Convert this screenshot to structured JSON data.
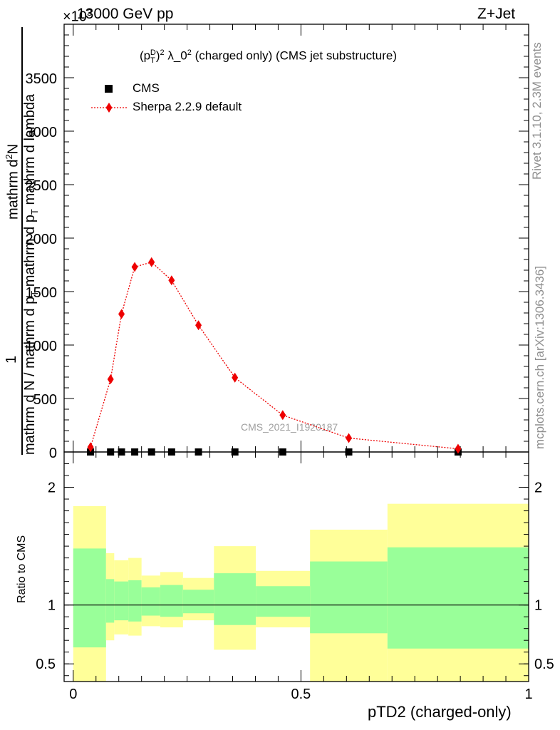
{
  "header": {
    "left": "13000 GeV pp",
    "right": "Z+Jet",
    "exponent": "×10",
    "exponent_power": "3"
  },
  "side_labels": {
    "rivet": "Rivet 3.1.10,  2.3M events",
    "mcplots": "mcplots.cern.ch [arXiv:1306.3436]"
  },
  "watermark": "CMS_2021_I1920187",
  "chart_data": [
    {
      "type": "line",
      "title": "(p_T^D)^2 λ_0^2 (charged only) (CMS jet substructure)",
      "ylabel": "1 / mathrm d N / mathrm d p_T mathrm d lambda · mathrm d^2N / mathrm d p_T mathrm d lambda",
      "xlim": [
        -0.02,
        1.0
      ],
      "ylim": [
        0,
        4000
      ],
      "y_exponent": 3,
      "yticks": [
        0,
        500,
        1000,
        1500,
        2000,
        2500,
        3000,
        3500
      ],
      "ytick_labels": [
        "0",
        "500",
        "1000",
        "1500",
        "2000",
        "2500",
        "3000",
        "3500"
      ],
      "legend_position": "top-left",
      "series": [
        {
          "name": "CMS",
          "marker": "square",
          "color": "#000000",
          "x": [
            0.038,
            0.082,
            0.106,
            0.135,
            0.172,
            0.216,
            0.275,
            0.355,
            0.46,
            0.605,
            0.845
          ],
          "y": [
            0,
            0,
            0,
            0,
            0,
            0,
            0,
            0,
            0,
            0,
            0
          ]
        },
        {
          "name": "Sherpa 2.2.9 default",
          "marker": "diamond",
          "color": "#ee0000",
          "x": [
            0.038,
            0.082,
            0.106,
            0.135,
            0.172,
            0.216,
            0.275,
            0.355,
            0.46,
            0.605,
            0.845
          ],
          "y": [
            45,
            680,
            1290,
            1730,
            1775,
            1605,
            1185,
            695,
            345,
            130,
            30
          ]
        }
      ]
    },
    {
      "type": "area",
      "ylabel": "Ratio to CMS",
      "xlabel": "pTD2 (charged-only)",
      "xlim": [
        -0.02,
        1.0
      ],
      "ylim": [
        0.35,
        2.3
      ],
      "yticks": [
        0.5,
        1,
        2
      ],
      "ytick_labels": [
        "0.5",
        "1",
        "2"
      ],
      "xticks": [
        0,
        0.5,
        1
      ],
      "xtick_labels": [
        "0",
        "0.5",
        "1"
      ],
      "reference_line": 1,
      "bins": [
        {
          "lo": 0.0,
          "hi": 0.072,
          "green_lo": 0.64,
          "green_hi": 1.48,
          "yellow_lo": 0.35,
          "yellow_hi": 1.84
        },
        {
          "lo": 0.072,
          "hi": 0.09,
          "green_lo": 0.85,
          "green_hi": 1.22,
          "yellow_lo": 0.7,
          "yellow_hi": 1.44
        },
        {
          "lo": 0.09,
          "hi": 0.121,
          "green_lo": 0.87,
          "green_hi": 1.2,
          "yellow_lo": 0.75,
          "yellow_hi": 1.38
        },
        {
          "lo": 0.121,
          "hi": 0.15,
          "green_lo": 0.86,
          "green_hi": 1.21,
          "yellow_lo": 0.74,
          "yellow_hi": 1.4
        },
        {
          "lo": 0.15,
          "hi": 0.191,
          "green_lo": 0.91,
          "green_hi": 1.15,
          "yellow_lo": 0.82,
          "yellow_hi": 1.25
        },
        {
          "lo": 0.191,
          "hi": 0.241,
          "green_lo": 0.9,
          "green_hi": 1.17,
          "yellow_lo": 0.81,
          "yellow_hi": 1.28
        },
        {
          "lo": 0.241,
          "hi": 0.309,
          "green_lo": 0.93,
          "green_hi": 1.13,
          "yellow_lo": 0.87,
          "yellow_hi": 1.23
        },
        {
          "lo": 0.309,
          "hi": 0.401,
          "green_lo": 0.83,
          "green_hi": 1.27,
          "yellow_lo": 0.62,
          "yellow_hi": 1.5
        },
        {
          "lo": 0.401,
          "hi": 0.52,
          "green_lo": 0.9,
          "green_hi": 1.16,
          "yellow_lo": 0.81,
          "yellow_hi": 1.29
        },
        {
          "lo": 0.52,
          "hi": 0.69,
          "green_lo": 0.76,
          "green_hi": 1.37,
          "yellow_lo": 0.35,
          "yellow_hi": 1.64
        },
        {
          "lo": 0.69,
          "hi": 1.0,
          "green_lo": 0.63,
          "green_hi": 1.49,
          "yellow_lo": 0.35,
          "yellow_hi": 1.86
        }
      ],
      "colors": {
        "green": "#99ff99",
        "yellow": "#ffff99"
      }
    }
  ]
}
